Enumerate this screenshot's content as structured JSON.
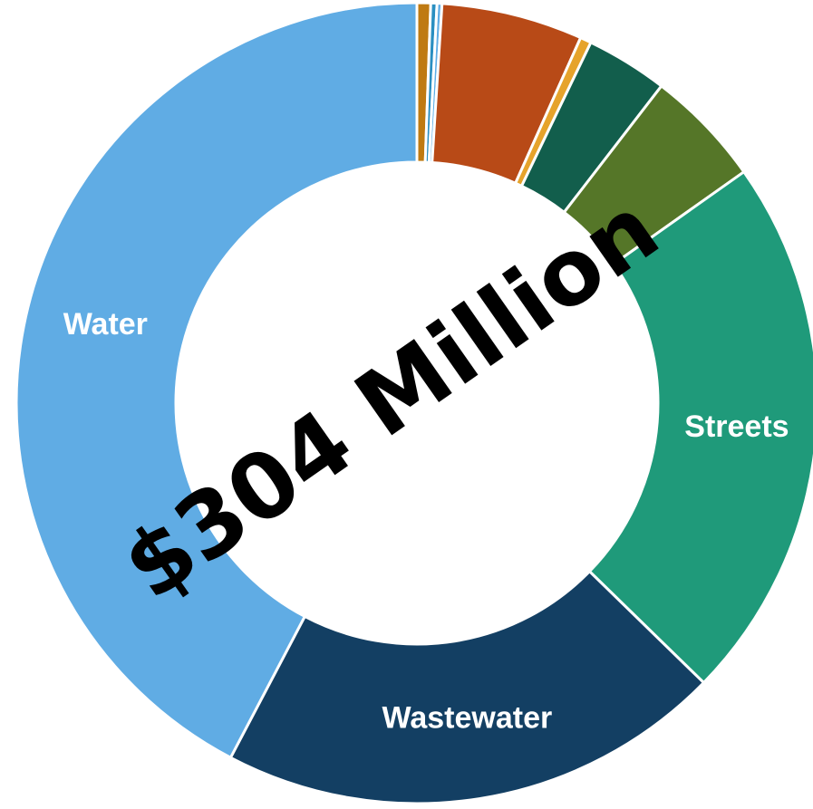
{
  "chart_data": {
    "type": "pie",
    "title": "",
    "center_label": "$304 Million",
    "slices": [
      {
        "label": "",
        "value": 0.55,
        "color": "#BF7A12"
      },
      {
        "label": "",
        "value": 0.25,
        "color": "#2A8FC1"
      },
      {
        "label": "",
        "value": 0.2,
        "color": "#5FAEE6"
      },
      {
        "label": "",
        "value": 5.7,
        "color": "#B84A17"
      },
      {
        "label": "",
        "value": 0.45,
        "color": "#E6A32B"
      },
      {
        "label": "",
        "value": 3.3,
        "color": "#125E4C"
      },
      {
        "label": "",
        "value": 4.75,
        "color": "#557628"
      },
      {
        "label": "Streets",
        "value": 22.1,
        "color": "#1F9A7A"
      },
      {
        "label": "Wastewater",
        "value": 20.4,
        "color": "#133F63"
      },
      {
        "label": "Water",
        "value": 42.3,
        "color": "#60ACE4"
      }
    ]
  }
}
